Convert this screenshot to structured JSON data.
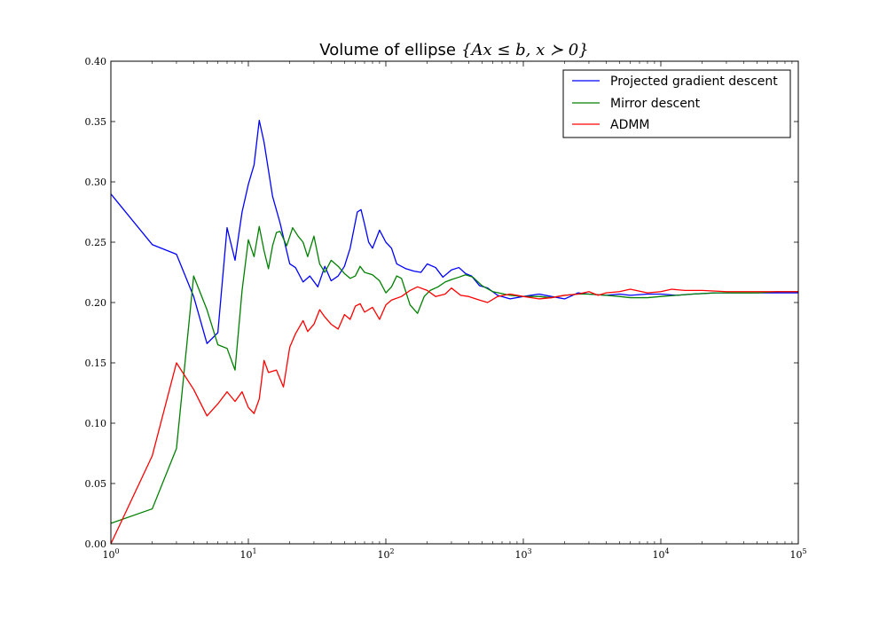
{
  "chart_data": {
    "type": "line",
    "title": "Volume of ellipse {Ax ≤ b, x ≻ 0}",
    "title_parts": {
      "text": "Volume of ellipse",
      "math": "{Ax ≤ b, x ≻ 0}"
    },
    "xlabel": "",
    "ylabel": "",
    "xscale": "log",
    "xlim": [
      1,
      100000
    ],
    "ylim": [
      0.0,
      0.4
    ],
    "x_ticks": [
      {
        "value": 1,
        "base": "10",
        "exp": "0"
      },
      {
        "value": 10,
        "base": "10",
        "exp": "1"
      },
      {
        "value": 100,
        "base": "10",
        "exp": "2"
      },
      {
        "value": 1000,
        "base": "10",
        "exp": "3"
      },
      {
        "value": 10000,
        "base": "10",
        "exp": "4"
      },
      {
        "value": 100000,
        "base": "10",
        "exp": "5"
      }
    ],
    "y_ticks": [
      {
        "value": 0.0,
        "label": "0.00"
      },
      {
        "value": 0.05,
        "label": "0.05"
      },
      {
        "value": 0.1,
        "label": "0.10"
      },
      {
        "value": 0.15,
        "label": "0.15"
      },
      {
        "value": 0.2,
        "label": "0.20"
      },
      {
        "value": 0.25,
        "label": "0.25"
      },
      {
        "value": 0.3,
        "label": "0.30"
      },
      {
        "value": 0.35,
        "label": "0.35"
      },
      {
        "value": 0.4,
        "label": "0.40"
      }
    ],
    "grid": false,
    "legend_position": "top-right",
    "series": [
      {
        "name": "Projected gradient descent",
        "color": "#0000ff",
        "points": [
          [
            1,
            0.29
          ],
          [
            2,
            0.248
          ],
          [
            3,
            0.24
          ],
          [
            4,
            0.205
          ],
          [
            5,
            0.166
          ],
          [
            6,
            0.175
          ],
          [
            7,
            0.262
          ],
          [
            8,
            0.235
          ],
          [
            9,
            0.275
          ],
          [
            10,
            0.298
          ],
          [
            11,
            0.314
          ],
          [
            12,
            0.351
          ],
          [
            13,
            0.333
          ],
          [
            15,
            0.288
          ],
          [
            17,
            0.266
          ],
          [
            20,
            0.232
          ],
          [
            22,
            0.229
          ],
          [
            25,
            0.217
          ],
          [
            28,
            0.222
          ],
          [
            32,
            0.213
          ],
          [
            36,
            0.23
          ],
          [
            40,
            0.218
          ],
          [
            45,
            0.222
          ],
          [
            50,
            0.23
          ],
          [
            55,
            0.245
          ],
          [
            62,
            0.275
          ],
          [
            66,
            0.277
          ],
          [
            70,
            0.265
          ],
          [
            75,
            0.25
          ],
          [
            80,
            0.245
          ],
          [
            90,
            0.26
          ],
          [
            100,
            0.25
          ],
          [
            110,
            0.245
          ],
          [
            120,
            0.232
          ],
          [
            140,
            0.228
          ],
          [
            160,
            0.226
          ],
          [
            180,
            0.225
          ],
          [
            200,
            0.232
          ],
          [
            230,
            0.229
          ],
          [
            260,
            0.221
          ],
          [
            300,
            0.227
          ],
          [
            340,
            0.229
          ],
          [
            380,
            0.224
          ],
          [
            420,
            0.222
          ],
          [
            480,
            0.214
          ],
          [
            550,
            0.212
          ],
          [
            650,
            0.206
          ],
          [
            800,
            0.203
          ],
          [
            1000,
            0.205
          ],
          [
            1300,
            0.207
          ],
          [
            1600,
            0.205
          ],
          [
            2000,
            0.203
          ],
          [
            2500,
            0.208
          ],
          [
            3000,
            0.207
          ],
          [
            4000,
            0.206
          ],
          [
            5000,
            0.207
          ],
          [
            6000,
            0.206
          ],
          [
            8000,
            0.207
          ],
          [
            10000,
            0.207
          ],
          [
            13000,
            0.206
          ],
          [
            17000,
            0.207
          ],
          [
            25000,
            0.208
          ],
          [
            35000,
            0.208
          ],
          [
            50000,
            0.208
          ],
          [
            70000,
            0.208
          ],
          [
            100000,
            0.208
          ]
        ]
      },
      {
        "name": "Mirror descent",
        "color": "#008000",
        "points": [
          [
            1,
            0.017
          ],
          [
            2,
            0.029
          ],
          [
            3,
            0.079
          ],
          [
            4,
            0.222
          ],
          [
            5,
            0.194
          ],
          [
            6,
            0.165
          ],
          [
            7,
            0.162
          ],
          [
            8,
            0.144
          ],
          [
            9,
            0.21
          ],
          [
            10,
            0.252
          ],
          [
            11,
            0.238
          ],
          [
            12,
            0.263
          ],
          [
            13,
            0.243
          ],
          [
            14,
            0.228
          ],
          [
            15,
            0.247
          ],
          [
            16,
            0.258
          ],
          [
            17,
            0.259
          ],
          [
            19,
            0.247
          ],
          [
            21,
            0.262
          ],
          [
            23,
            0.255
          ],
          [
            25,
            0.25
          ],
          [
            27,
            0.238
          ],
          [
            30,
            0.255
          ],
          [
            33,
            0.232
          ],
          [
            36,
            0.225
          ],
          [
            40,
            0.235
          ],
          [
            45,
            0.23
          ],
          [
            50,
            0.224
          ],
          [
            55,
            0.22
          ],
          [
            60,
            0.222
          ],
          [
            65,
            0.23
          ],
          [
            70,
            0.225
          ],
          [
            80,
            0.223
          ],
          [
            90,
            0.218
          ],
          [
            100,
            0.208
          ],
          [
            110,
            0.213
          ],
          [
            120,
            0.222
          ],
          [
            130,
            0.22
          ],
          [
            150,
            0.198
          ],
          [
            170,
            0.191
          ],
          [
            190,
            0.205
          ],
          [
            210,
            0.21
          ],
          [
            240,
            0.213
          ],
          [
            270,
            0.217
          ],
          [
            300,
            0.219
          ],
          [
            340,
            0.221
          ],
          [
            380,
            0.223
          ],
          [
            430,
            0.221
          ],
          [
            500,
            0.214
          ],
          [
            600,
            0.209
          ],
          [
            800,
            0.206
          ],
          [
            1000,
            0.205
          ],
          [
            1300,
            0.205
          ],
          [
            1600,
            0.204
          ],
          [
            2000,
            0.206
          ],
          [
            2500,
            0.207
          ],
          [
            3000,
            0.207
          ],
          [
            4000,
            0.206
          ],
          [
            5000,
            0.205
          ],
          [
            6000,
            0.204
          ],
          [
            8000,
            0.204
          ],
          [
            10000,
            0.205
          ],
          [
            13000,
            0.206
          ],
          [
            17000,
            0.207
          ],
          [
            25000,
            0.208
          ],
          [
            35000,
            0.208
          ],
          [
            50000,
            0.208
          ],
          [
            70000,
            0.209
          ],
          [
            100000,
            0.209
          ]
        ]
      },
      {
        "name": "ADMM",
        "color": "#ff0000",
        "points": [
          [
            1,
            0.0
          ],
          [
            2,
            0.073
          ],
          [
            3,
            0.15
          ],
          [
            4,
            0.128
          ],
          [
            5,
            0.106
          ],
          [
            6,
            0.116
          ],
          [
            7,
            0.126
          ],
          [
            8,
            0.118
          ],
          [
            9,
            0.126
          ],
          [
            10,
            0.113
          ],
          [
            11,
            0.108
          ],
          [
            12,
            0.12
          ],
          [
            13,
            0.152
          ],
          [
            14,
            0.142
          ],
          [
            16,
            0.144
          ],
          [
            18,
            0.13
          ],
          [
            20,
            0.163
          ],
          [
            22,
            0.174
          ],
          [
            25,
            0.185
          ],
          [
            27,
            0.176
          ],
          [
            30,
            0.182
          ],
          [
            33,
            0.194
          ],
          [
            36,
            0.188
          ],
          [
            40,
            0.182
          ],
          [
            45,
            0.178
          ],
          [
            50,
            0.19
          ],
          [
            55,
            0.186
          ],
          [
            60,
            0.197
          ],
          [
            65,
            0.199
          ],
          [
            70,
            0.192
          ],
          [
            80,
            0.196
          ],
          [
            90,
            0.186
          ],
          [
            100,
            0.198
          ],
          [
            110,
            0.202
          ],
          [
            130,
            0.205
          ],
          [
            150,
            0.21
          ],
          [
            170,
            0.213
          ],
          [
            200,
            0.21
          ],
          [
            230,
            0.205
          ],
          [
            270,
            0.207
          ],
          [
            300,
            0.212
          ],
          [
            350,
            0.206
          ],
          [
            400,
            0.205
          ],
          [
            480,
            0.202
          ],
          [
            550,
            0.2
          ],
          [
            650,
            0.205
          ],
          [
            800,
            0.207
          ],
          [
            1000,
            0.205
          ],
          [
            1300,
            0.203
          ],
          [
            1600,
            0.204
          ],
          [
            2000,
            0.206
          ],
          [
            2500,
            0.207
          ],
          [
            3000,
            0.209
          ],
          [
            3500,
            0.206
          ],
          [
            4000,
            0.208
          ],
          [
            5000,
            0.209
          ],
          [
            6000,
            0.211
          ],
          [
            8000,
            0.208
          ],
          [
            10000,
            0.209
          ],
          [
            12000,
            0.211
          ],
          [
            15000,
            0.21
          ],
          [
            20000,
            0.21
          ],
          [
            30000,
            0.209
          ],
          [
            50000,
            0.209
          ],
          [
            70000,
            0.209
          ],
          [
            100000,
            0.209
          ]
        ]
      }
    ]
  }
}
